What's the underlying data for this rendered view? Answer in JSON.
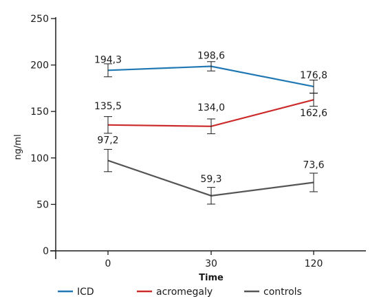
{
  "chart_data": {
    "type": "line",
    "title": "",
    "xlabel": "Time",
    "ylabel": "ng/ml",
    "x": [
      "0",
      "30",
      "120"
    ],
    "ylim": [
      0,
      250
    ],
    "yticks": [
      0,
      50,
      100,
      150,
      200,
      250
    ],
    "grid": false,
    "legend_position": "bottom",
    "series": [
      {
        "name": "ICD",
        "color": "#1f77b4",
        "values": [
          194.3,
          198.6,
          176.8
        ],
        "labels": [
          "194,3",
          "198,6",
          "176,8"
        ],
        "errors": [
          7,
          5,
          7
        ]
      },
      {
        "name": "acromegaly",
        "color": "#cc2a2a",
        "values": [
          135.5,
          134.0,
          162.6
        ],
        "labels": [
          "135,5",
          "134,0",
          "162,6"
        ],
        "errors": [
          9,
          8,
          7
        ]
      },
      {
        "name": "controls",
        "color": "#555555",
        "values": [
          97.2,
          59.3,
          73.6
        ],
        "labels": [
          "97,2",
          "59,3",
          "73,6"
        ],
        "errors": [
          12,
          9,
          10
        ]
      }
    ]
  }
}
